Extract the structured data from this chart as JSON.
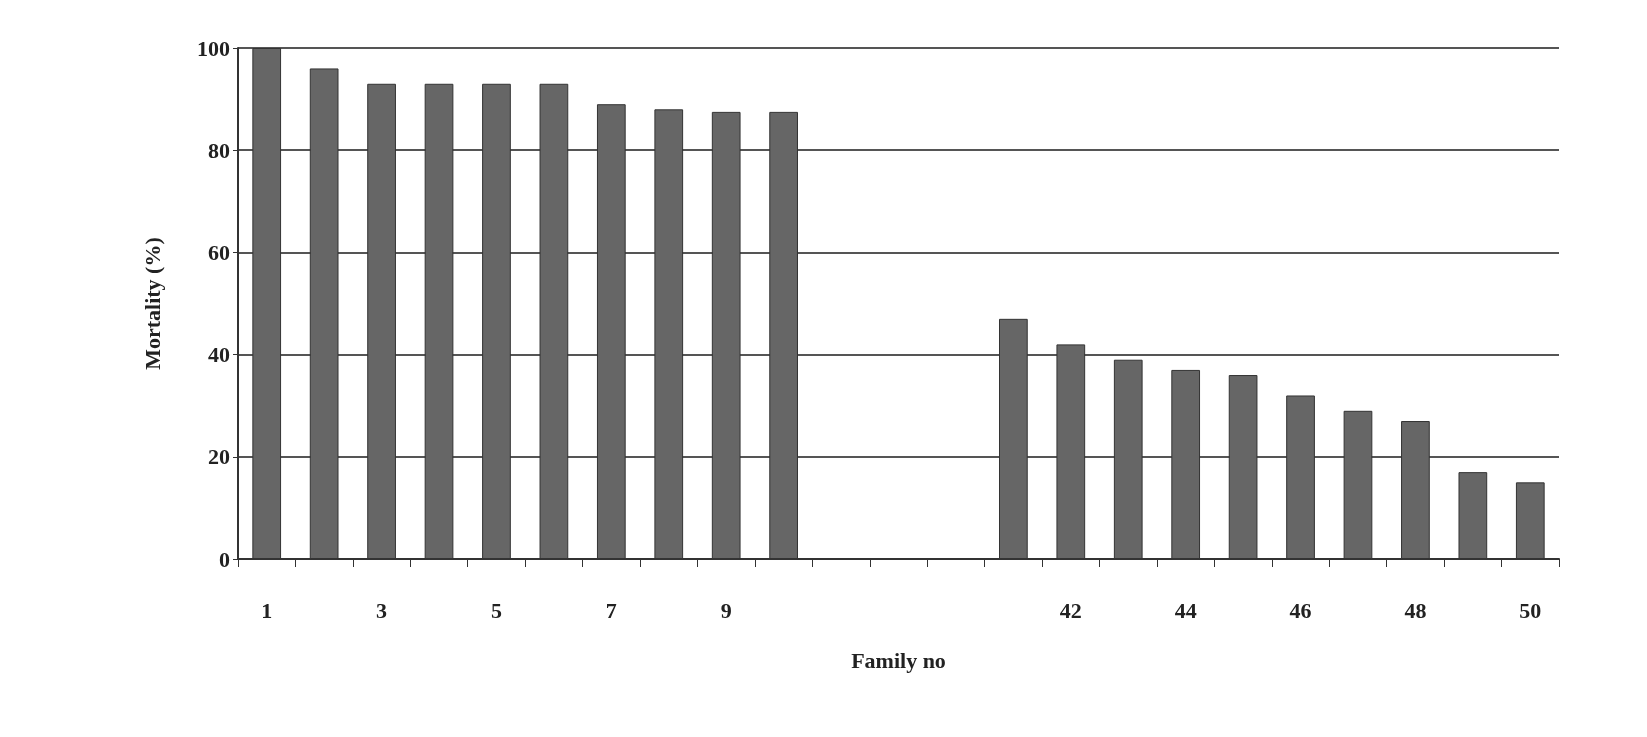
{
  "chart_data": {
    "type": "bar",
    "xlabel": "Family no",
    "ylabel": "Mortality (%)",
    "categories": [
      "1",
      null,
      "3",
      null,
      "5",
      null,
      "7",
      null,
      "9",
      null,
      null,
      null,
      null,
      null,
      "42",
      null,
      "44",
      null,
      "46",
      null,
      "48",
      null,
      "50"
    ],
    "values": [
      100,
      96,
      93,
      93,
      93,
      93,
      89,
      88,
      87.5,
      87.5,
      null,
      null,
      null,
      47,
      42,
      39,
      37,
      36,
      32,
      29,
      27,
      17,
      15
    ],
    "color": "#666666",
    "ylim": [
      0,
      100
    ],
    "yticks": [
      0,
      20,
      40,
      60,
      80,
      100
    ],
    "grid": "y"
  }
}
